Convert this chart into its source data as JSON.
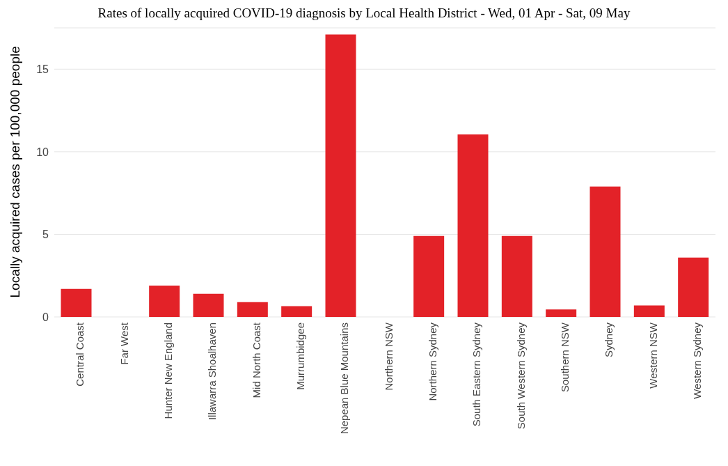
{
  "chart_data": {
    "type": "bar",
    "title": "Rates of locally acquired COVID-19 diagnosis by Local Health District - Wed, 01 Apr - Sat, 09 May",
    "ylabel": "Locally acquired cases per 100,000 people",
    "categories": [
      "Central Coast",
      "Far West",
      "Hunter New England",
      "Illawarra Shoalhaven",
      "Mid North Coast",
      "Murrumbidgee",
      "Nepean Blue Mountains",
      "Northern NSW",
      "Northern Sydney",
      "South Eastern Sydney",
      "South Western Sydney",
      "Southern NSW",
      "Sydney",
      "Western NSW",
      "Western Sydney"
    ],
    "values": [
      1.7,
      0,
      1.9,
      1.4,
      0.9,
      0.65,
      17.1,
      0,
      4.9,
      11.05,
      4.9,
      0.45,
      7.9,
      0.7,
      3.6
    ],
    "color": "#e32228",
    "ylim": [
      0,
      17.5
    ],
    "yticks": [
      0,
      5,
      10,
      15
    ],
    "grid": "y"
  }
}
